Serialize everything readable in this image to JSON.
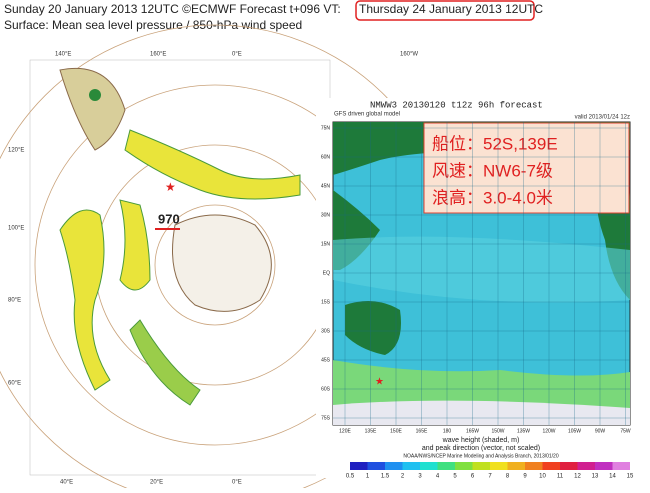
{
  "header": {
    "line1_prefix": "Sunday 20 January 2013 12UTC ©ECMWF Forecast t+096 VT:",
    "line1_highlight": "Thursday 24 January 2013 12UTC",
    "line2": "Surface: Mean sea level pressure / 850-hPa wind speed"
  },
  "left_map": {
    "top_labels": [
      "140°E",
      "160°E",
      "0°E",
      "160°W"
    ],
    "side_labels": [
      "120°E",
      "100°E",
      "80°E",
      "60°E"
    ],
    "bottom_labels": [
      "40°E",
      "20°E",
      "0°E"
    ],
    "low_label": "970"
  },
  "right_map": {
    "title": "NMWW3 20130120 t12z    96h forecast",
    "subtitle": "GFS driven global model",
    "valid": "valid 2013/01/24 12z",
    "lat_labels": [
      "75N",
      "60N",
      "45N",
      "30N",
      "15N",
      "EQ",
      "15S",
      "30S",
      "45S",
      "60S",
      "75S"
    ],
    "lon_labels": [
      "120E",
      "135E",
      "150E",
      "165E",
      "180",
      "165W",
      "150W",
      "135W",
      "120W",
      "105W",
      "90W",
      "75W"
    ],
    "caption": [
      "wave height (shaded, m)",
      "and peak direction (vector, not scaled)",
      "NOAA/NWS/NCEP Marine Modeling and Analysis Branch, 2013/01/20"
    ],
    "colorbar_labels": [
      0.5,
      1,
      1.5,
      2,
      3,
      4,
      5,
      6,
      7,
      8,
      9,
      10,
      11,
      12,
      13,
      14,
      15
    ]
  },
  "annotation": [
    "船位：52S,139E",
    "风速：NW6-7级",
    "浪高：3.0-4.0米"
  ]
}
